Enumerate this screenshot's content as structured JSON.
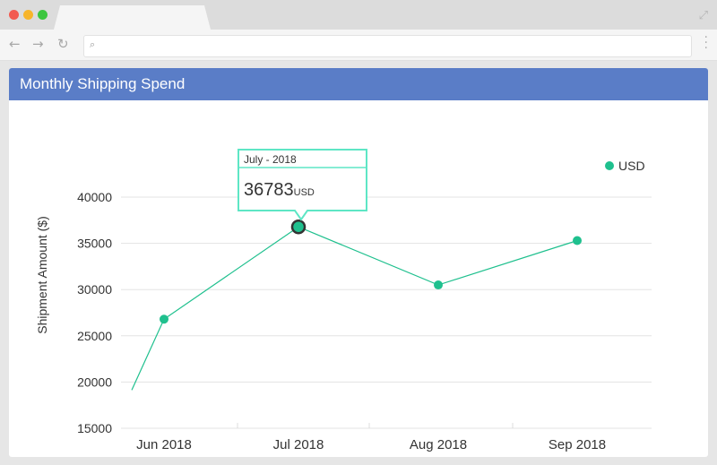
{
  "panel": {
    "title": "Monthly Shipping Spend"
  },
  "tooltip": {
    "label": "July - 2018",
    "value": "36783",
    "unit": "USD"
  },
  "colors": {
    "series": "#1fc08e",
    "header": "#5a7dc7",
    "tooltip_border": "#5ee6c5"
  },
  "chart_data": {
    "type": "line",
    "title": "",
    "xlabel": "",
    "ylabel": "Shipment Amount ($)",
    "ylim": [
      15000,
      42000
    ],
    "yticks": [
      15000,
      20000,
      25000,
      30000,
      35000,
      40000
    ],
    "categories": [
      "Jun 2018",
      "Jul 2018",
      "Aug 2018",
      "Sep 2018"
    ],
    "series": [
      {
        "name": "USD",
        "values": [
          26800,
          36783,
          30500,
          35300
        ]
      }
    ],
    "legend": "top-right",
    "grid": true
  }
}
